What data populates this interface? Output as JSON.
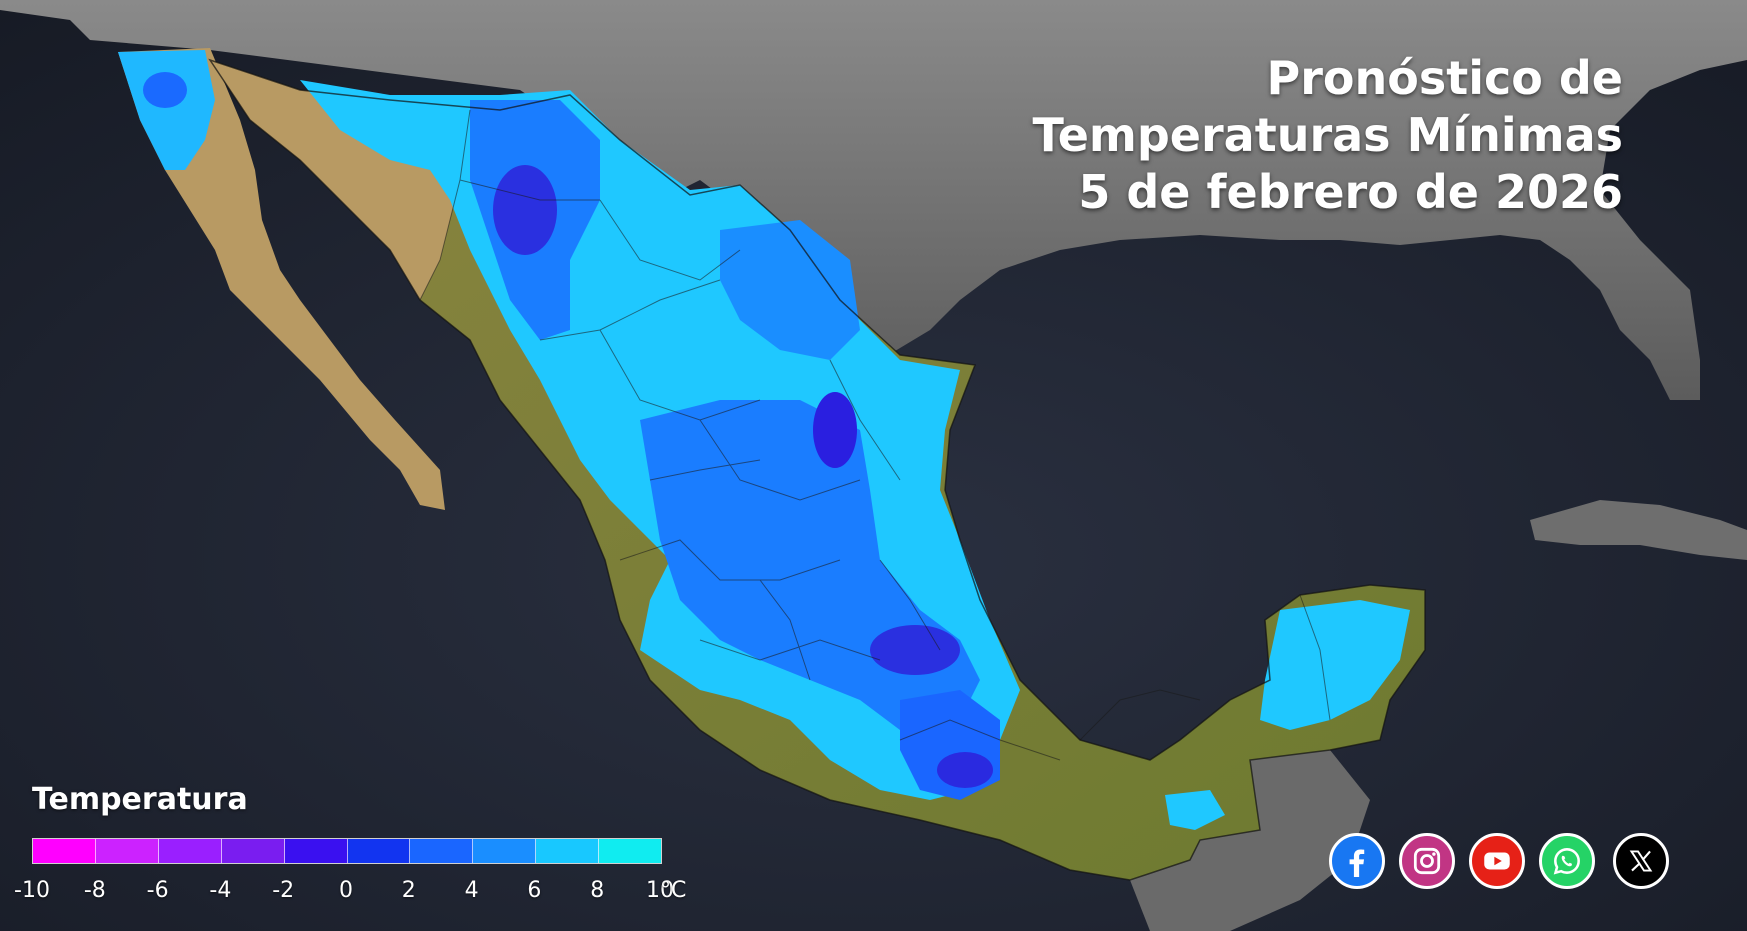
{
  "title": {
    "line1": "Pronóstico de",
    "line2": "Temperaturas Mínimas",
    "line3": "5 de febrero de 2026"
  },
  "legend": {
    "title": "Temperatura",
    "unit": "°C",
    "ticks": [
      "-10",
      "-8",
      "-6",
      "-4",
      "-2",
      "0",
      "2",
      "4",
      "6",
      "8",
      "10"
    ],
    "colors": [
      "#ff00ff",
      "#cc22ff",
      "#9a1fff",
      "#7a1df0",
      "#3a10f0",
      "#1234f0",
      "#1a66ff",
      "#1a8eff",
      "#18c8ff",
      "#10ecf0"
    ]
  },
  "social_icons": [
    {
      "name": "facebook-icon",
      "color": "#1877f2"
    },
    {
      "name": "instagram-icon",
      "color": "#c13584"
    },
    {
      "name": "youtube-icon",
      "color": "#e62117"
    },
    {
      "name": "whatsapp-icon",
      "color": "#25d366"
    },
    {
      "name": "x-icon",
      "color": "#000000"
    }
  ],
  "map_colors": {
    "ocean": "#1d2230",
    "land_other": "#6a6a6a",
    "land_warm_dry": "#b89a63",
    "land_warm_green": "#7f8a3a",
    "cold_light": "#1fd0ff",
    "cold_mid": "#1a7dff",
    "cold_deep": "#2a30e0"
  }
}
